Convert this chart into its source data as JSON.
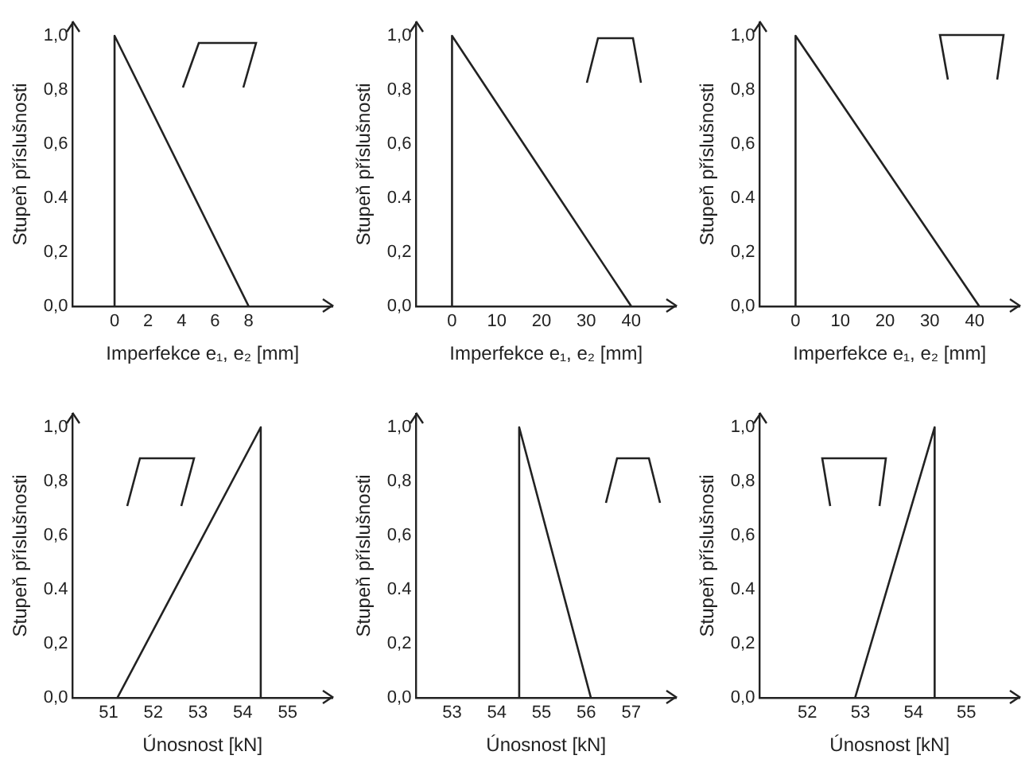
{
  "chart_data": [
    {
      "type": "line",
      "xlabel": "Imperfekce e₁, e₂ [mm]",
      "ylabel": "Stupeň příslušnosti",
      "grid": false,
      "marker": "none",
      "line_style": "solid",
      "legend": false,
      "xlim": [
        -2.5,
        13
      ],
      "xticks": [
        0,
        2,
        4,
        6,
        8
      ],
      "ylim": [
        0,
        1.05
      ],
      "yticks": [
        {
          "value": 0,
          "label": "0,0"
        },
        {
          "value": 0.2,
          "label": "0,2"
        },
        {
          "value": 0.4,
          "label": "0.4"
        },
        {
          "value": 0.6,
          "label": "0,6"
        },
        {
          "value": 0.8,
          "label": "0,8"
        },
        {
          "value": 1,
          "label": "1,0"
        }
      ],
      "series": [
        {
          "color": "#222222",
          "x": [
            0,
            0,
            8
          ],
          "values": [
            0,
            1,
            0
          ]
        }
      ]
    },
    {
      "type": "line",
      "xlabel": "Imperfekce e₁, e₂ [mm]",
      "ylabel": "Stupeň příslušnosti",
      "grid": false,
      "marker": "none",
      "line_style": "solid",
      "legend": false,
      "xlim": [
        -8,
        50
      ],
      "xticks": [
        0,
        10,
        20,
        30,
        40
      ],
      "ylim": [
        0,
        1.05
      ],
      "yticks": [
        {
          "value": 0,
          "label": "0,0"
        },
        {
          "value": 0.2,
          "label": "0,2"
        },
        {
          "value": 0.4,
          "label": "0.4"
        },
        {
          "value": 0.6,
          "label": "0,6"
        },
        {
          "value": 0.8,
          "label": "0,8"
        },
        {
          "value": 1,
          "label": "1,0"
        }
      ],
      "series": [
        {
          "color": "#222222",
          "x": [
            0,
            0,
            40
          ],
          "values": [
            0,
            1,
            0
          ]
        }
      ]
    },
    {
      "type": "line",
      "xlabel": "Imperfekce e₁, e₂ [mm]",
      "ylabel": "Stupeň příslušnosti",
      "grid": false,
      "marker": "none",
      "line_style": "solid",
      "legend": false,
      "xlim": [
        -8,
        50
      ],
      "xticks": [
        0,
        10,
        20,
        30,
        40
      ],
      "ylim": [
        0,
        1.05
      ],
      "yticks": [
        {
          "value": 0,
          "label": "0,0"
        },
        {
          "value": 0.2,
          "label": "0,2"
        },
        {
          "value": 0.4,
          "label": "0.4"
        },
        {
          "value": 0.6,
          "label": "0,6"
        },
        {
          "value": 0.8,
          "label": "0,8"
        },
        {
          "value": 1,
          "label": "1,0"
        }
      ],
      "series": [
        {
          "color": "#222222",
          "x": [
            0,
            0,
            41
          ],
          "values": [
            0,
            1,
            0
          ]
        }
      ]
    },
    {
      "type": "line",
      "xlabel": "Únosnost [kN]",
      "ylabel": "Stupeň příslušnosti",
      "grid": false,
      "marker": "none",
      "line_style": "solid",
      "legend": false,
      "xlim": [
        50.2,
        56
      ],
      "xticks": [
        51,
        52,
        53,
        54,
        55
      ],
      "ylim": [
        0,
        1.05
      ],
      "yticks": [
        {
          "value": 0,
          "label": "0,0"
        },
        {
          "value": 0.2,
          "label": "0,2"
        },
        {
          "value": 0.4,
          "label": "0.4"
        },
        {
          "value": 0.6,
          "label": "0,6"
        },
        {
          "value": 0.8,
          "label": "0,8"
        },
        {
          "value": 1,
          "label": "1,0"
        }
      ],
      "series": [
        {
          "color": "#222222",
          "x": [
            51.2,
            54.4,
            54.4
          ],
          "values": [
            0,
            1,
            0
          ]
        }
      ]
    },
    {
      "type": "line",
      "xlabel": "Únosnost [kN]",
      "ylabel": "Stupeň příslušnosti",
      "grid": false,
      "marker": "none",
      "line_style": "solid",
      "legend": false,
      "xlim": [
        52.2,
        58
      ],
      "xticks": [
        53,
        54,
        55,
        56,
        57
      ],
      "ylim": [
        0,
        1.05
      ],
      "yticks": [
        {
          "value": 0,
          "label": "0,0"
        },
        {
          "value": 0.2,
          "label": "0,2"
        },
        {
          "value": 0.4,
          "label": "0.4"
        },
        {
          "value": 0.6,
          "label": "0,6"
        },
        {
          "value": 0.8,
          "label": "0,8"
        },
        {
          "value": 1,
          "label": "1,0"
        }
      ],
      "series": [
        {
          "color": "#222222",
          "x": [
            54.5,
            54.5,
            56.1
          ],
          "values": [
            0,
            1,
            0
          ]
        }
      ]
    },
    {
      "type": "line",
      "xlabel": "Únosnost [kN]",
      "ylabel": "Stupeň příslušnosti",
      "grid": false,
      "marker": "none",
      "line_style": "solid",
      "legend": false,
      "xlim": [
        51.1,
        56
      ],
      "xticks": [
        52,
        53,
        54,
        55
      ],
      "ylim": [
        0,
        1.05
      ],
      "yticks": [
        {
          "value": 0,
          "label": "0,0"
        },
        {
          "value": 0.2,
          "label": "0,2"
        },
        {
          "value": 0.4,
          "label": "0.4"
        },
        {
          "value": 0.6,
          "label": "0,6"
        },
        {
          "value": 0.8,
          "label": "0,8"
        },
        {
          "value": 1,
          "label": "1,0"
        }
      ],
      "series": [
        {
          "color": "#222222",
          "x": [
            52.9,
            54.4,
            54.4
          ],
          "values": [
            0,
            1,
            0
          ]
        }
      ]
    }
  ]
}
